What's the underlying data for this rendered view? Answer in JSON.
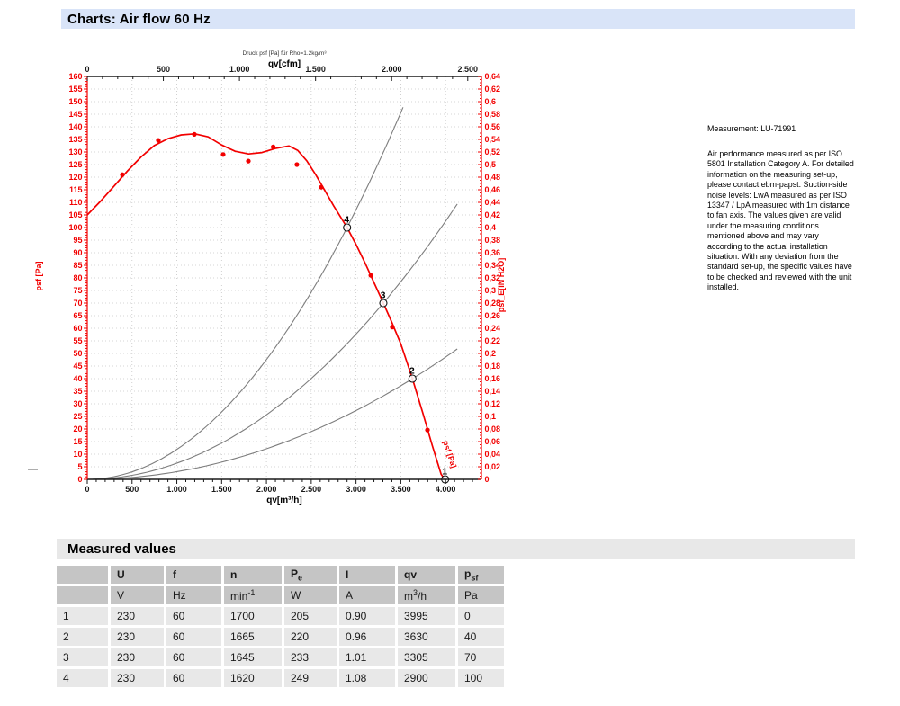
{
  "page": {
    "title": "Charts: Air flow 60 Hz"
  },
  "annotation": {
    "measurement": "Measurement: LU-71991",
    "body": "Air performance measured as per ISO 5801 Installation Category A. For detailed information on the measuring set-up, please contact ebm-papst. Suction-side noise levels: LwA measured as per ISO 13347 / LpA measured with 1m distance to fan axis. The values given are valid under the measuring conditions mentioned above and may vary according to the actual installation situation. With any deviation from the standard set-up, the specific values have to be checked and reviewed with the unit installed."
  },
  "colors": {
    "accent_red": "#f20000",
    "axis_black": "#1a1a1a",
    "grid": "#c6c6c6",
    "system_curve": "#7d7d7d",
    "header_bar": "#d9e4f8",
    "section_bar": "#e8e8e8",
    "table_header": "#c5c5c5",
    "table_row": "#e8e8e8"
  },
  "chart_data": {
    "type": "line",
    "small_title": "Druck psf [Pa] für Rho=1.2kg/m³",
    "top_axis": {
      "title": "qv[cfm]",
      "max": 2590,
      "tick_step": 500,
      "minor_step": 100,
      "labels": [
        "0",
        "500",
        "1.000",
        "1.500",
        "2.000",
        "2.500"
      ]
    },
    "bottom_axis": {
      "title": "qv[m³/h]",
      "max": 4400,
      "tick_step": 500,
      "minor_step": 100,
      "labels": [
        "0",
        "500",
        "1.000",
        "1.500",
        "2.000",
        "2.500",
        "3.000",
        "3.500",
        "4.000"
      ]
    },
    "left_axis": {
      "title": "psf [Pa]",
      "min": 0,
      "max": 160,
      "step": 5,
      "minor_step": 1
    },
    "right_axis": {
      "title": "psf_E[IN H2O]",
      "min": 0,
      "max": 0.64,
      "step": 0.02,
      "minor_step": 0.005,
      "labels": [
        "0",
        "0,02",
        "0,04",
        "0,06",
        "0,08",
        "0,1",
        "0,12",
        "0,14",
        "0,16",
        "0,18",
        "0,2",
        "0,22",
        "0,24",
        "0,26",
        "0,28",
        "0,3",
        "0,32",
        "0,34",
        "0,36",
        "0,38",
        "0,4",
        "0,42",
        "0,44",
        "0,46",
        "0,48",
        "0,5",
        "0,52",
        "0,54",
        "0,56",
        "0,58",
        "0,6",
        "0,62",
        "0,64"
      ]
    },
    "curve_label": "psf [Pa]",
    "fan_curve": [
      [
        0,
        105
      ],
      [
        150,
        110.5
      ],
      [
        300,
        116.5
      ],
      [
        450,
        122.5
      ],
      [
        600,
        128
      ],
      [
        750,
        132.6
      ],
      [
        900,
        135.3
      ],
      [
        1050,
        136.8
      ],
      [
        1200,
        137.2
      ],
      [
        1350,
        136
      ],
      [
        1500,
        132.8
      ],
      [
        1650,
        130.3
      ],
      [
        1800,
        129.2
      ],
      [
        1950,
        129.8
      ],
      [
        2100,
        131.4
      ],
      [
        2250,
        132.4
      ],
      [
        2350,
        130.6
      ],
      [
        2450,
        126.5
      ],
      [
        2550,
        121
      ],
      [
        2650,
        114.8
      ],
      [
        2750,
        108.6
      ],
      [
        2900,
        100
      ],
      [
        3000,
        93.3
      ],
      [
        3100,
        86
      ],
      [
        3200,
        78.2
      ],
      [
        3305,
        70
      ],
      [
        3400,
        62.3
      ],
      [
        3500,
        53.8
      ],
      [
        3630,
        40
      ],
      [
        3750,
        25.8
      ],
      [
        3850,
        13.5
      ],
      [
        3950,
        2
      ],
      [
        3990,
        0
      ]
    ],
    "measured_dots": [
      [
        392,
        121
      ],
      [
        794,
        134.6
      ],
      [
        1195,
        137
      ],
      [
        1517,
        129
      ],
      [
        1798,
        126.4
      ],
      [
        2075,
        132
      ],
      [
        2340,
        125
      ],
      [
        2612,
        116
      ],
      [
        3165,
        81
      ],
      [
        3405,
        60.5
      ],
      [
        3797,
        19.6
      ]
    ],
    "operating_points": [
      {
        "label": "1",
        "qv": 3995,
        "psf": 0
      },
      {
        "label": "2",
        "qv": 3630,
        "psf": 40
      },
      {
        "label": "3",
        "qv": 3305,
        "psf": 70
      },
      {
        "label": "4",
        "qv": 2900,
        "psf": 100
      }
    ],
    "system_curves": [
      {
        "through": {
          "qv": 2900,
          "psf": 100
        },
        "q_end": 3553
      },
      {
        "through": {
          "qv": 3305,
          "psf": 70
        },
        "q_end": 4170
      },
      {
        "through": {
          "qv": 3630,
          "psf": 40
        },
        "q_end": 4170
      }
    ]
  },
  "measured_values": {
    "section_title": "Measured values",
    "columns": [
      {
        "label": "",
        "unit": ""
      },
      {
        "label": "U",
        "unit": "V"
      },
      {
        "label": "f",
        "unit": "Hz"
      },
      {
        "label": "n",
        "unit": "min",
        "unit_sup": "-1"
      },
      {
        "label": "P",
        "label_sub": "e",
        "unit": "W"
      },
      {
        "label": "I",
        "unit": "A"
      },
      {
        "label": "qv",
        "unit": "m",
        "unit_sup": "3",
        "unit_suffix": "/h"
      },
      {
        "label": "p",
        "label_sub": "sf",
        "unit": "Pa"
      }
    ],
    "rows": [
      [
        "1",
        "230",
        "60",
        "1700",
        "205",
        "0.90",
        "3995",
        "0"
      ],
      [
        "2",
        "230",
        "60",
        "1665",
        "220",
        "0.96",
        "3630",
        "40"
      ],
      [
        "3",
        "230",
        "60",
        "1645",
        "233",
        "1.01",
        "3305",
        "70"
      ],
      [
        "4",
        "230",
        "60",
        "1620",
        "249",
        "1.08",
        "2900",
        "100"
      ]
    ]
  }
}
